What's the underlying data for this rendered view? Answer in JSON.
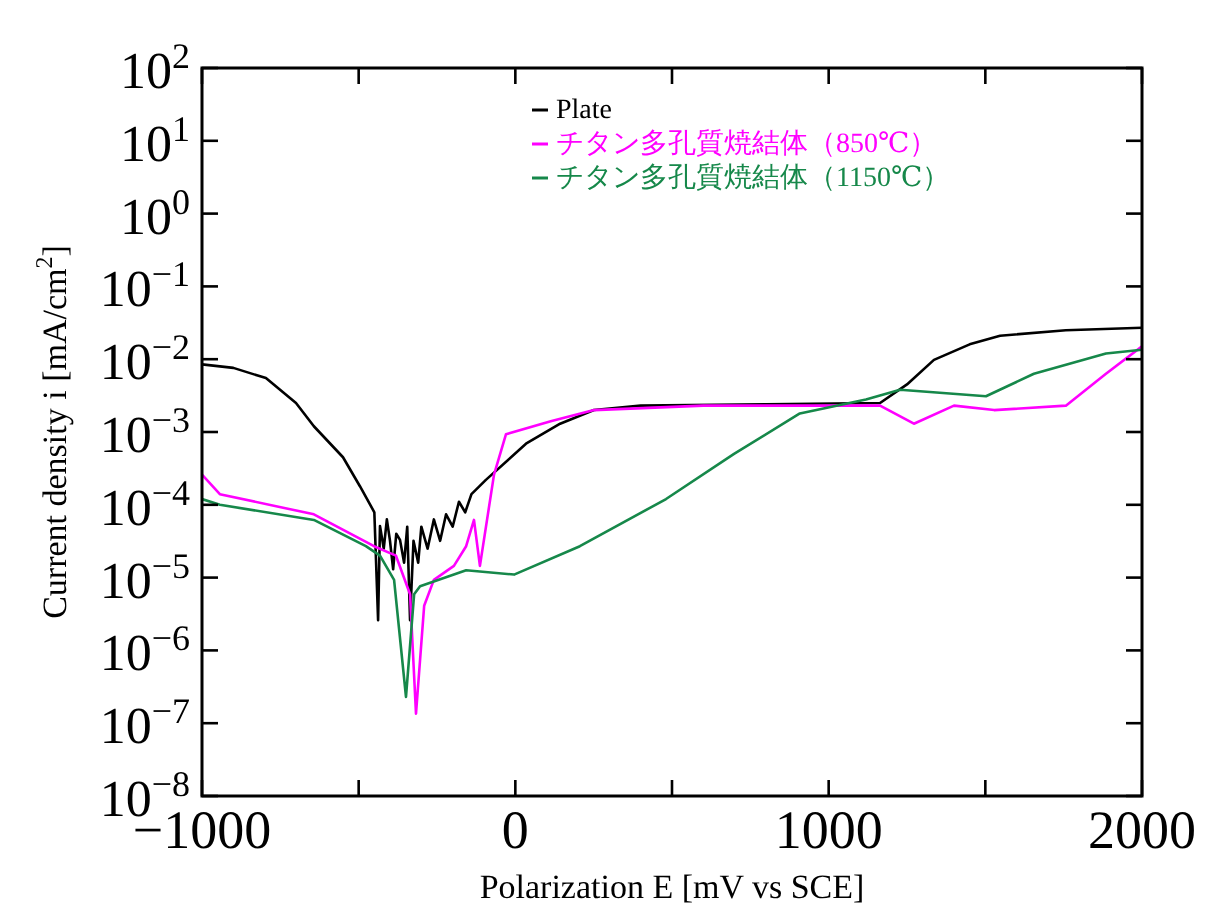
{
  "chart_data": {
    "type": "line",
    "xlabel": "Polarization E [mV vs SCE]",
    "ylabel": "Current density i [mA/cm$^{2}$]",
    "log": "y",
    "xlim": [
      -1000,
      2000
    ],
    "ylim": [
      1e-08,
      100
    ],
    "xticks": [
      -1000,
      {
        "value": -500,
        "label": null
      },
      0,
      {
        "value": 500,
        "label": null
      },
      1000,
      {
        "value": 1500,
        "label": null
      },
      2000
    ],
    "yticks": [
      {
        "value": 1e-08,
        "label": "10$^{−8}$"
      },
      {
        "value": 1e-07,
        "label": "10$^{−7}$"
      },
      {
        "value": 1e-06,
        "label": "10$^{−6}$"
      },
      {
        "value": 1e-05,
        "label": "10$^{−5}$"
      },
      {
        "value": 0.0001,
        "label": "10$^{−4}$"
      },
      {
        "value": 0.001,
        "label": "10$^{−3}$"
      },
      {
        "value": 0.01,
        "label": "10$^{−2}$"
      },
      {
        "value": 0.1,
        "label": "10$^{−1}$"
      },
      {
        "value": 1,
        "label": "10$^{0}$"
      },
      {
        "value": 10,
        "label": "10$^{1}$"
      },
      {
        "value": 100,
        "label": "10$^{2}$"
      }
    ],
    "grid": false,
    "legend": "top right",
    "marker": "none",
    "line_style": "solid",
    "series": [
      {
        "name": "Plate",
        "color": "#000000",
        "x": [
          -1000,
          -900,
          -796,
          -700,
          -643,
          -550,
          -496,
          -450,
          -438,
          -432,
          -420,
          -410,
          -400,
          -390,
          -380,
          -368,
          -355,
          -345,
          -336,
          -325,
          -310,
          -300,
          -280,
          -260,
          -240,
          -221,
          -200,
          -180,
          -160,
          -140,
          -94,
          34,
          143,
          251,
          400,
          800,
          1164,
          1250,
          1336,
          1450,
          1547,
          1757,
          2000
        ],
        "values": [
          0.0085,
          0.0076,
          0.0055,
          0.0025,
          0.0012,
          0.00045,
          0.00018,
          7.9e-05,
          2.6e-06,
          5.1e-05,
          2.5e-05,
          6.3e-05,
          3.2e-05,
          1.3e-05,
          4e-05,
          3.3e-05,
          1.6e-05,
          5e-05,
          2.6e-06,
          3.2e-05,
          1.6e-05,
          5e-05,
          2.5e-05,
          6.3e-05,
          3.2e-05,
          7.4e-05,
          5e-05,
          0.00011,
          7.9e-05,
          0.00014,
          0.00022,
          0.00069,
          0.0013,
          0.002,
          0.0023,
          0.0024,
          0.0025,
          0.0045,
          0.0098,
          0.016,
          0.021,
          0.025,
          0.027
        ]
      },
      {
        "name": "チタン多孔質焼結体（850℃）",
        "color": "#ff00ff",
        "x": [
          -1000,
          -943,
          -643,
          -451,
          -381,
          -336,
          -317,
          -291,
          -260,
          -196,
          -157,
          -132,
          -113,
          -68,
          -30,
          113,
          251,
          600,
          1164,
          1272,
          1400,
          1528,
          1757,
          1885,
          2000
        ],
        "values": [
          0.00026,
          0.00014,
          7.4e-05,
          2.7e-05,
          2e-05,
          5.9e-06,
          1.35e-07,
          4.1e-06,
          9.3e-06,
          1.45e-05,
          2.7e-05,
          6.2e-05,
          1.45e-05,
          0.00026,
          0.00093,
          0.0014,
          0.002,
          0.0023,
          0.0023,
          0.0013,
          0.0023,
          0.002,
          0.0023,
          0.0063,
          0.015
        ]
      },
      {
        "name": "チタン多孔質焼結体（1150℃）",
        "color": "#16884a",
        "x": [
          -1000,
          -943,
          -643,
          -477,
          -432,
          -387,
          -349,
          -323,
          -304,
          -157,
          -4,
          206,
          481,
          698,
          908,
          1119,
          1228,
          1502,
          1655,
          1885,
          2000
        ],
        "values": [
          0.00012,
          0.0001,
          6.2e-05,
          2.7e-05,
          2e-05,
          9.3e-06,
          2.3e-07,
          5.9e-06,
          7.6e-06,
          1.26e-05,
          1.1e-05,
          2.7e-05,
          0.00012,
          0.0005,
          0.0018,
          0.0028,
          0.0038,
          0.0031,
          0.0063,
          0.012,
          0.0135
        ]
      }
    ]
  }
}
